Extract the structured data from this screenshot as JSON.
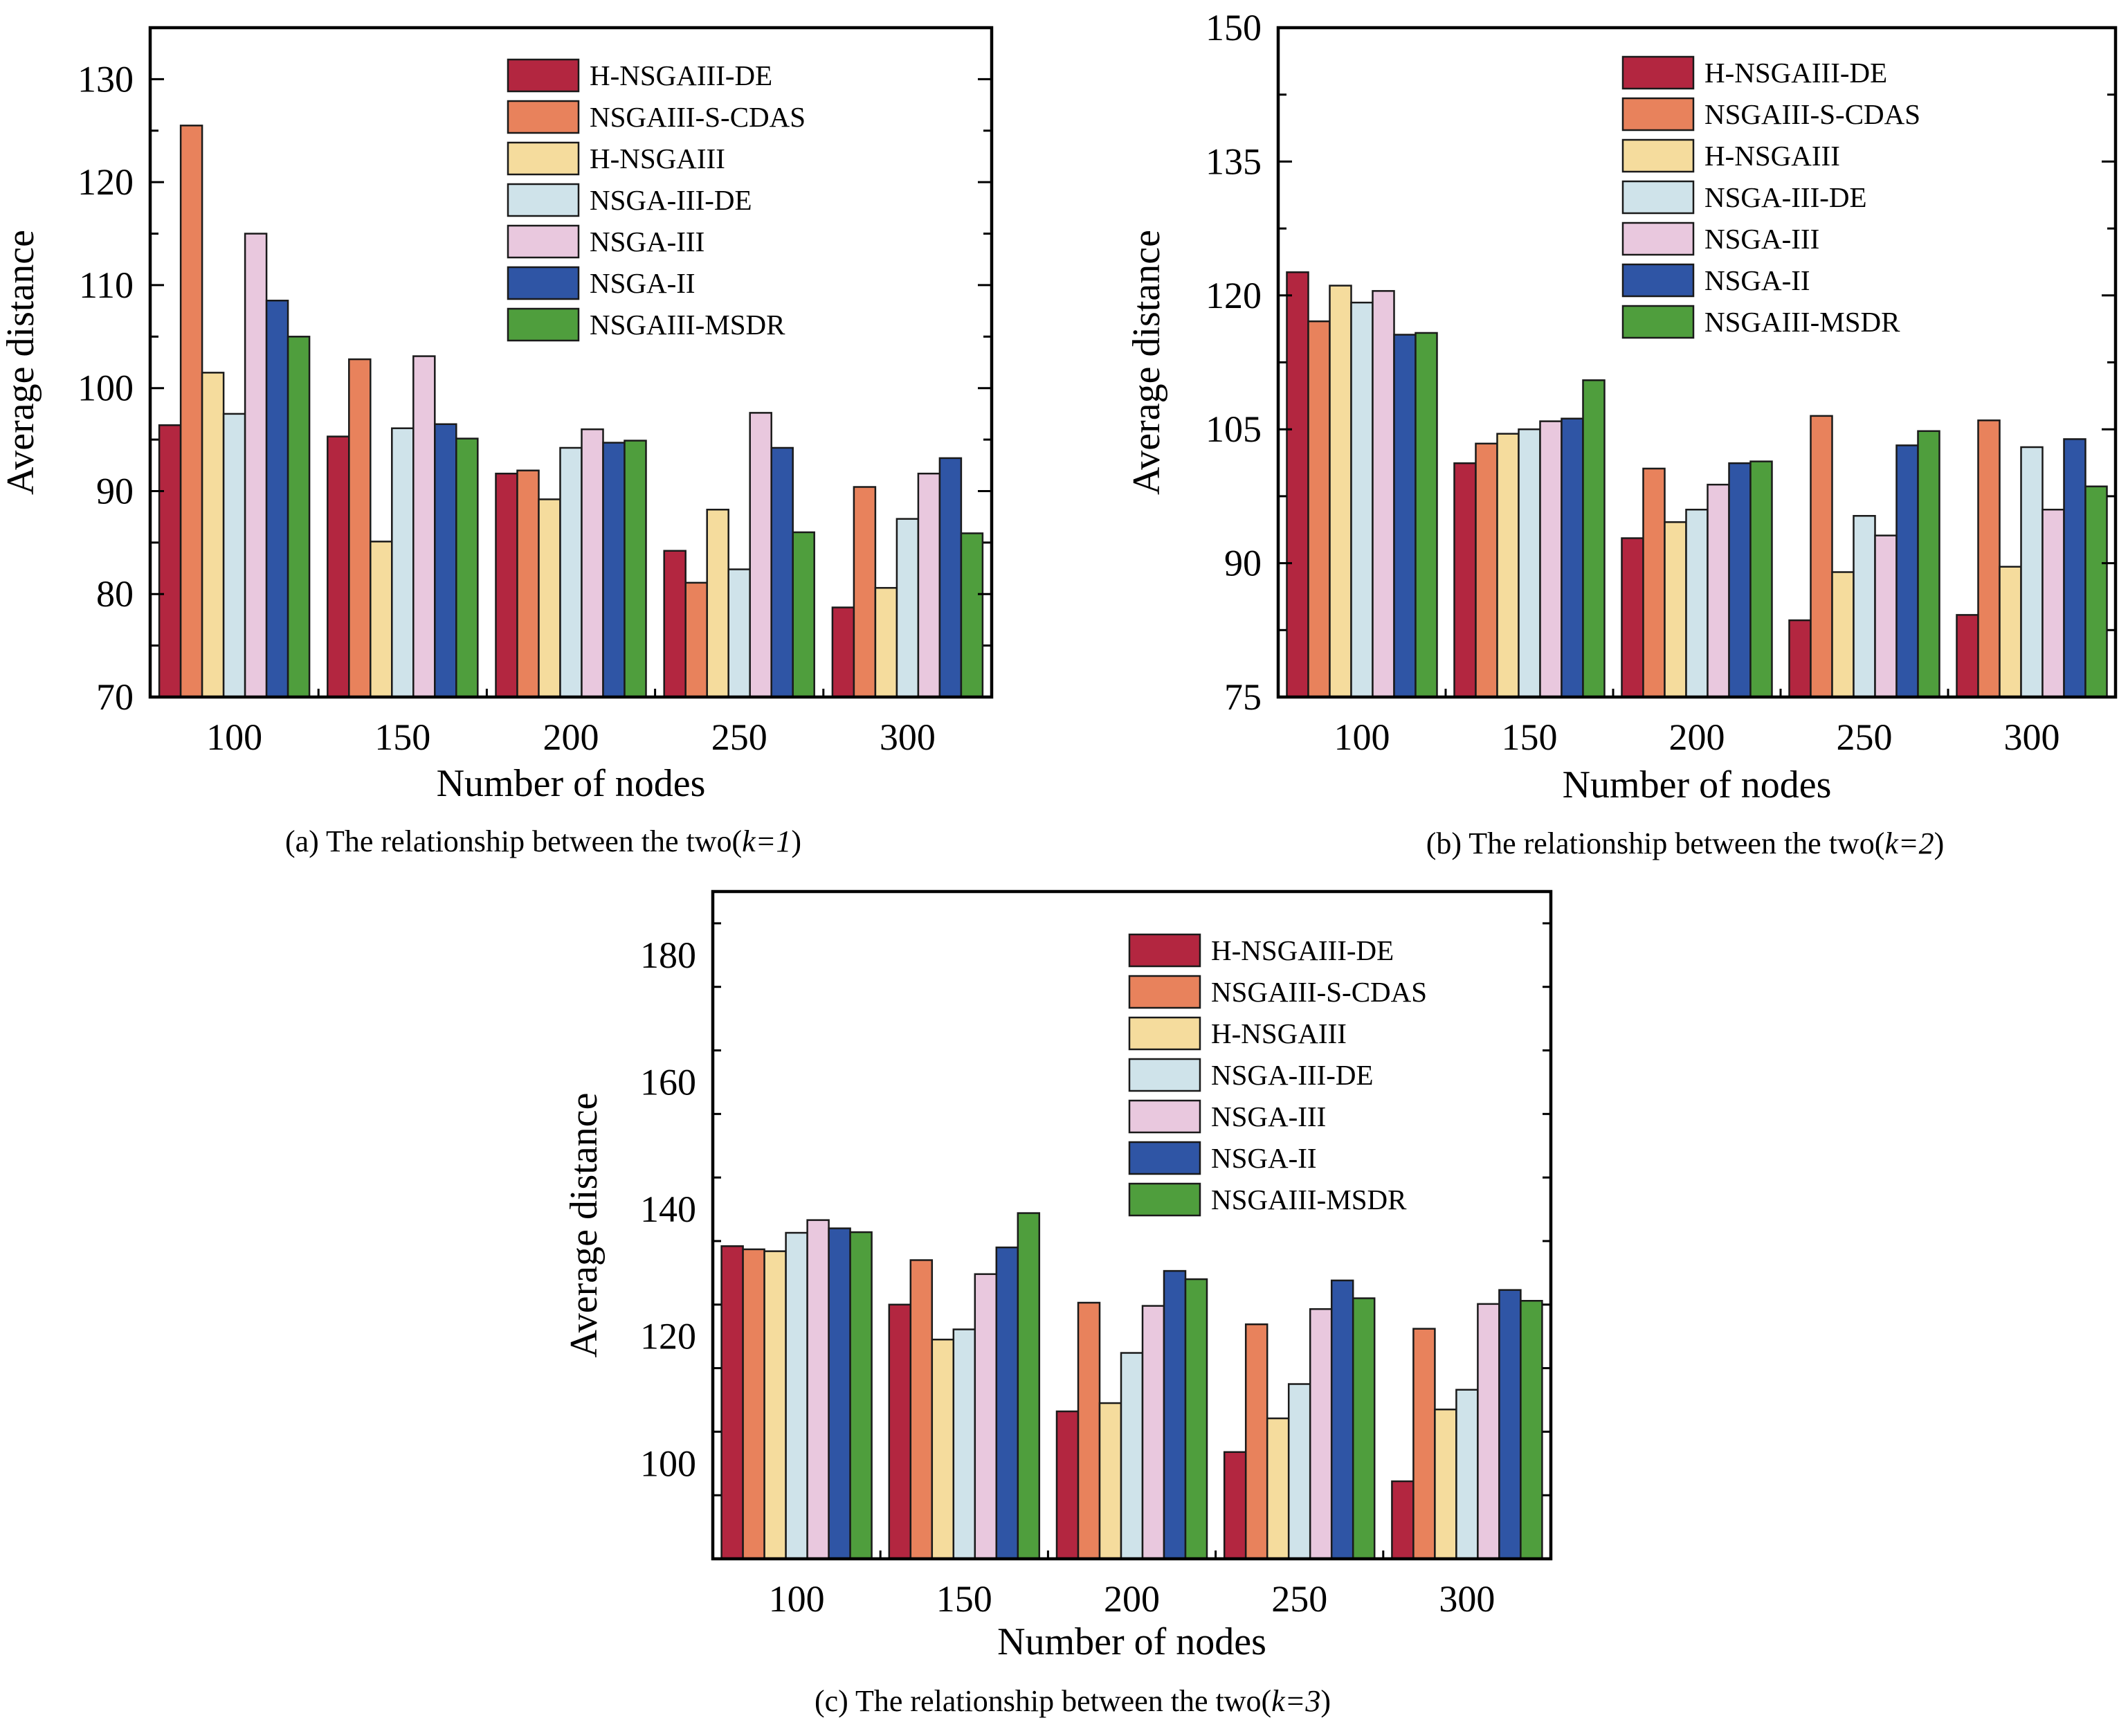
{
  "chart_data": [
    {
      "type": "bar",
      "caption": "(a) The relationship between the two(",
      "caption_k": "k=1",
      "caption_end": ")",
      "xlabel": "Number of nodes",
      "ylabel": "Average distance",
      "ylim": [
        70,
        135
      ],
      "yticks": [
        70,
        80,
        90,
        100,
        110,
        120,
        130
      ],
      "categories": [
        "100",
        "150",
        "200",
        "250",
        "300"
      ],
      "legend": "top-right",
      "series": [
        {
          "name": "H-NSGAIII-DE",
          "color": "#b32640",
          "values": [
            96.4,
            95.3,
            91.7,
            84.2,
            78.7
          ]
        },
        {
          "name": "NSGAIII-S-CDAS",
          "color": "#e8825c",
          "values": [
            125.5,
            102.8,
            92.0,
            81.1,
            90.4
          ]
        },
        {
          "name": "H-NSGAIII",
          "color": "#f5dc9d",
          "values": [
            101.5,
            85.1,
            89.2,
            88.2,
            80.6
          ]
        },
        {
          "name": "NSGA-III-DE",
          "color": "#cfe3ea",
          "values": [
            97.5,
            96.1,
            94.2,
            82.4,
            87.3
          ]
        },
        {
          "name": "NSGA-III",
          "color": "#e9c8de",
          "values": [
            115.0,
            103.1,
            96.0,
            97.6,
            91.7
          ]
        },
        {
          "name": "NSGA-II",
          "color": "#2f55a5",
          "values": [
            108.5,
            96.5,
            94.7,
            94.2,
            93.2
          ]
        },
        {
          "name": "NSGAIII-MSDR",
          "color": "#4f9e3d",
          "values": [
            105.0,
            95.1,
            94.9,
            86.0,
            85.9
          ]
        }
      ]
    },
    {
      "type": "bar",
      "caption": "(b) The relationship between the two(",
      "caption_k": "k=2",
      "caption_end": ")",
      "xlabel": "Number of nodes",
      "ylabel": "Average distance",
      "ylim": [
        75,
        150
      ],
      "yticks": [
        75,
        90,
        105,
        120,
        135,
        150
      ],
      "categories": [
        "100",
        "150",
        "200",
        "250",
        "300"
      ],
      "legend": "top-right",
      "series": [
        {
          "name": "H-NSGAIII-DE",
          "color": "#b32640",
          "values": [
            122.6,
            101.2,
            92.8,
            83.6,
            84.2
          ]
        },
        {
          "name": "NSGAIII-S-CDAS",
          "color": "#e8825c",
          "values": [
            117.1,
            103.4,
            100.6,
            106.5,
            106.0
          ]
        },
        {
          "name": "H-NSGAIII",
          "color": "#f5dc9d",
          "values": [
            121.1,
            104.5,
            94.6,
            89.0,
            89.6
          ]
        },
        {
          "name": "NSGA-III-DE",
          "color": "#cfe3ea",
          "values": [
            119.2,
            105.0,
            96.0,
            95.3,
            103.0
          ]
        },
        {
          "name": "NSGA-III",
          "color": "#e9c8de",
          "values": [
            120.5,
            105.9,
            98.8,
            93.1,
            96.0
          ]
        },
        {
          "name": "NSGA-II",
          "color": "#2f55a5",
          "values": [
            115.6,
            106.2,
            101.2,
            103.2,
            103.9
          ]
        },
        {
          "name": "NSGAIII-MSDR",
          "color": "#4f9e3d",
          "values": [
            115.8,
            110.5,
            101.4,
            104.8,
            98.6
          ]
        }
      ]
    },
    {
      "type": "bar",
      "caption": "(c) The relationship between the two(",
      "caption_k": "k=3",
      "caption_end": ")",
      "xlabel": "Number of nodes",
      "ylabel": "Average distance",
      "ylim": [
        85,
        190
      ],
      "yticks": [
        100,
        120,
        140,
        160,
        180
      ],
      "categories": [
        "100",
        "150",
        "200",
        "250",
        "300"
      ],
      "legend": "top-right",
      "series": [
        {
          "name": "H-NSGAIII-DE",
          "color": "#b32640",
          "values": [
            134.2,
            125.0,
            108.2,
            101.8,
            97.2
          ]
        },
        {
          "name": "NSGAIII-S-CDAS",
          "color": "#e8825c",
          "values": [
            133.7,
            132.0,
            125.3,
            121.9,
            121.2
          ]
        },
        {
          "name": "H-NSGAIII",
          "color": "#f5dc9d",
          "values": [
            133.4,
            119.5,
            109.5,
            107.1,
            108.5
          ]
        },
        {
          "name": "NSGA-III-DE",
          "color": "#cfe3ea",
          "values": [
            136.3,
            121.1,
            117.4,
            112.5,
            111.6
          ]
        },
        {
          "name": "NSGA-III",
          "color": "#e9c8de",
          "values": [
            138.3,
            129.8,
            124.8,
            124.3,
            125.1
          ]
        },
        {
          "name": "NSGA-II",
          "color": "#2f55a5",
          "values": [
            137.0,
            134.0,
            130.3,
            128.8,
            127.3
          ]
        },
        {
          "name": "NSGAIII-MSDR",
          "color": "#4f9e3d",
          "values": [
            136.4,
            139.4,
            129.0,
            126.0,
            125.6
          ]
        }
      ]
    }
  ]
}
